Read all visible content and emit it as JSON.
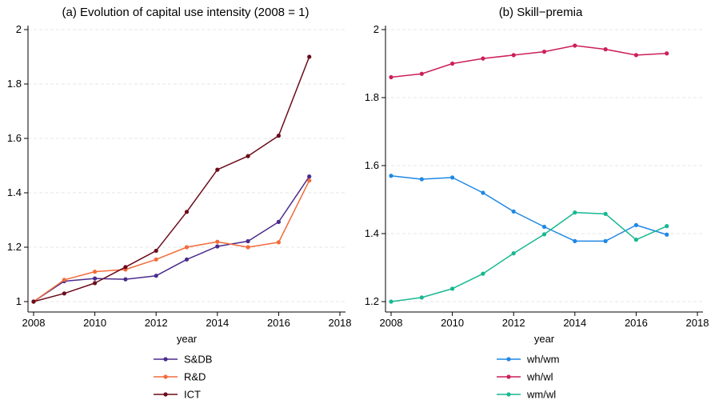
{
  "chart_data": [
    {
      "type": "line",
      "title": "(a) Evolution of capital use intensity (2008 = 1)",
      "xlabel": "year",
      "ylabel": "",
      "xlim": [
        2008,
        2018
      ],
      "ylim": [
        1,
        2
      ],
      "xticks": [
        "2008",
        "2010",
        "2012",
        "2014",
        "2016",
        "2018"
      ],
      "yticks": [
        "1",
        "1.2",
        "1.4",
        "1.6",
        "1.8",
        "2"
      ],
      "grid": true,
      "legend_position": "bottom",
      "x": [
        2008,
        2009,
        2010,
        2011,
        2012,
        2013,
        2014,
        2015,
        2016,
        2017
      ],
      "series": [
        {
          "name": "S&DB",
          "color": "#4b2c8c",
          "values": [
            1.0,
            1.075,
            1.085,
            1.082,
            1.095,
            1.155,
            1.203,
            1.222,
            1.293,
            1.46
          ]
        },
        {
          "name": "R&D",
          "color": "#f26b3a",
          "values": [
            1.0,
            1.08,
            1.11,
            1.118,
            1.155,
            1.2,
            1.22,
            1.2,
            1.218,
            1.445
          ]
        },
        {
          "name": "ICT",
          "color": "#6b0c1a",
          "values": [
            1.0,
            1.03,
            1.068,
            1.127,
            1.187,
            1.33,
            1.485,
            1.535,
            1.61,
            1.9
          ]
        }
      ]
    },
    {
      "type": "line",
      "title": "(b) Skill−premia",
      "xlabel": "year",
      "ylabel": "",
      "xlim": [
        2008,
        2018
      ],
      "ylim": [
        1.2,
        2
      ],
      "xticks": [
        "2008",
        "2010",
        "2012",
        "2014",
        "2016",
        "2018"
      ],
      "yticks": [
        "1.2",
        "1.4",
        "1.6",
        "1.8",
        "2"
      ],
      "grid": true,
      "legend_position": "bottom",
      "x": [
        2008,
        2009,
        2010,
        2011,
        2012,
        2013,
        2014,
        2015,
        2016,
        2017
      ],
      "series": [
        {
          "name": "wh/wm",
          "color": "#1f88e5",
          "values": [
            1.57,
            1.56,
            1.565,
            1.52,
            1.465,
            1.42,
            1.378,
            1.378,
            1.425,
            1.397
          ]
        },
        {
          "name": "wh/wl",
          "color": "#cc1f5c",
          "values": [
            1.86,
            1.87,
            1.9,
            1.915,
            1.925,
            1.935,
            1.953,
            1.942,
            1.925,
            1.93
          ]
        },
        {
          "name": "wm/wl",
          "color": "#17b890",
          "values": [
            1.2,
            1.212,
            1.238,
            1.282,
            1.342,
            1.398,
            1.462,
            1.458,
            1.382,
            1.422
          ]
        }
      ]
    }
  ]
}
